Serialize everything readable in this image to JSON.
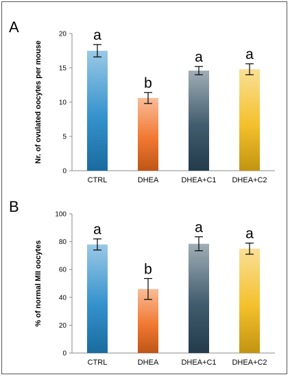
{
  "chart_data": [
    {
      "type": "bar",
      "panel": "A",
      "categories": [
        "CTRL",
        "DHEA",
        "DHEA+C1",
        "DHEA+C2"
      ],
      "values": [
        17.5,
        10.6,
        14.6,
        14.8
      ],
      "errors": [
        0.9,
        0.8,
        0.6,
        0.8
      ],
      "significance": [
        "a",
        "b",
        "a",
        "a"
      ],
      "ylabel": "Nr. of ovulated oocytes per mouse",
      "ylim": [
        0,
        20
      ],
      "yticks": [
        0,
        5,
        10,
        15,
        20
      ],
      "grid": false,
      "colors": [
        "#1f86c7",
        "#ef6a1b",
        "#2c4a5e",
        "#f3b915"
      ]
    },
    {
      "type": "bar",
      "panel": "B",
      "categories": [
        "CTRL",
        "DHEA",
        "DHEA+C1",
        "DHEA+C2"
      ],
      "values": [
        78,
        46,
        78.5,
        75
      ],
      "errors": [
        4,
        7.5,
        5,
        4
      ],
      "significance": [
        "a",
        "b",
        "a",
        "a"
      ],
      "ylabel": "% of normal MII oocytes",
      "ylim": [
        0,
        100
      ],
      "yticks": [
        0,
        20,
        40,
        60,
        80,
        100
      ],
      "grid": false,
      "colors": [
        "#1f86c7",
        "#ef6a1b",
        "#2c4a5e",
        "#f3b915"
      ]
    }
  ]
}
